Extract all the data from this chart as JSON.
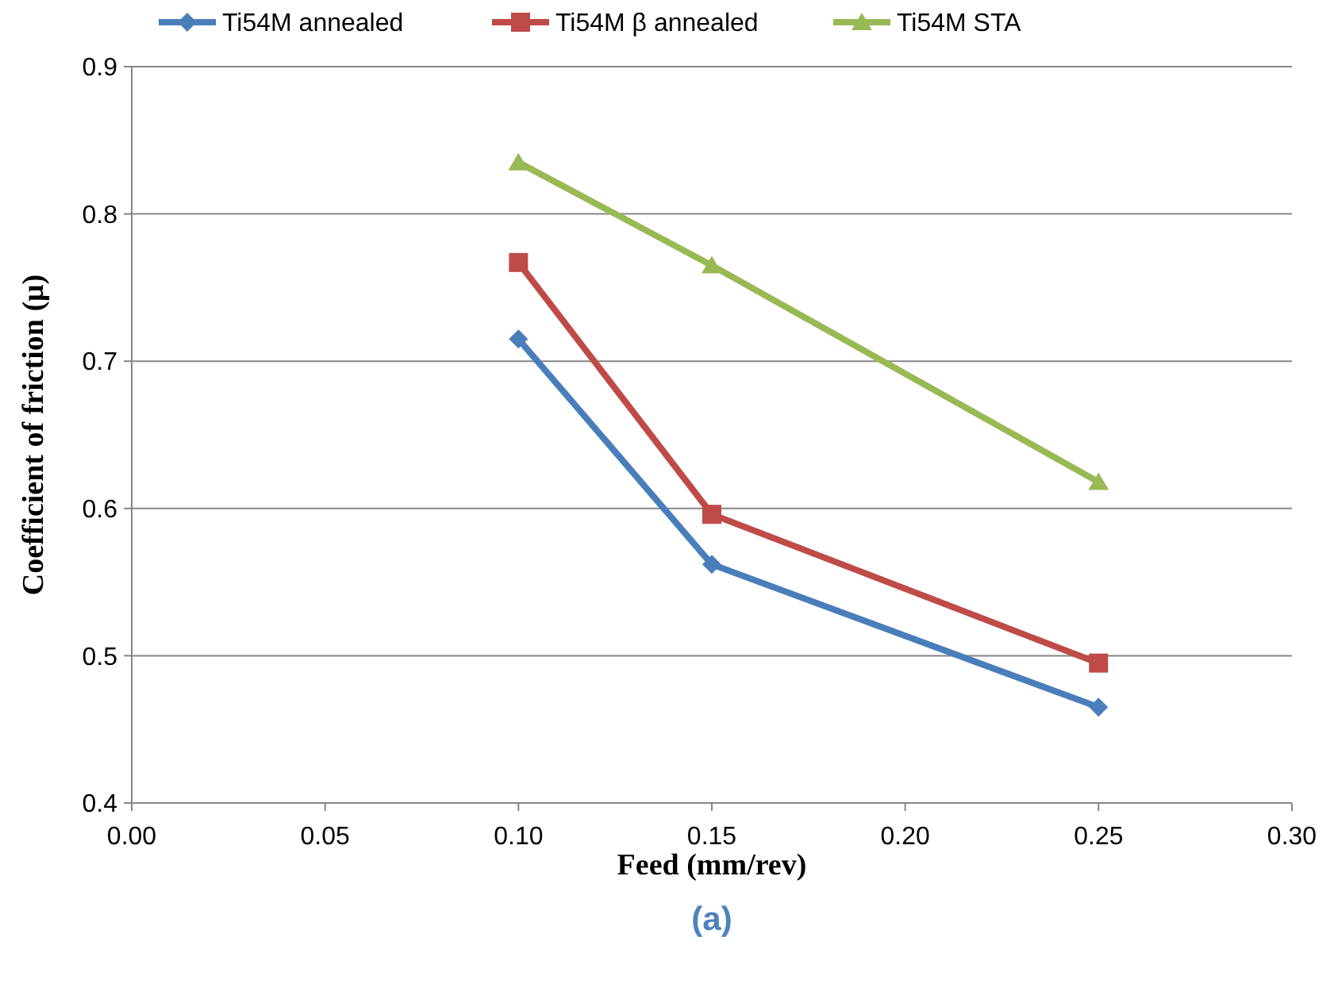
{
  "chart_data": {
    "type": "line",
    "xlabel": "Feed (mm/rev)",
    "ylabel": "Coefficient of friction (μ)",
    "x": [
      0.1,
      0.15,
      0.25
    ],
    "series": [
      {
        "name": "Ti54M annealed",
        "color": "#4a7ebb",
        "marker": "diamond",
        "values": [
          0.715,
          0.562,
          0.465
        ]
      },
      {
        "name": "Ti54M β annealed",
        "color": "#be4b48",
        "marker": "square",
        "values": [
          0.767,
          0.596,
          0.495
        ]
      },
      {
        "name": "Ti54M STA",
        "color": "#98b954",
        "marker": "triangle",
        "values": [
          0.835,
          0.765,
          0.618
        ]
      }
    ],
    "xlim": [
      0,
      0.3
    ],
    "xticks": [
      {
        "value": 0,
        "label": "0.00"
      },
      {
        "value": 0.05,
        "label": "0.05"
      },
      {
        "value": 0.1,
        "label": "0.10"
      },
      {
        "value": 0.15,
        "label": "0.15"
      },
      {
        "value": 0.2,
        "label": "0.20"
      },
      {
        "value": 0.25,
        "label": "0.25"
      },
      {
        "value": 0.3,
        "label": "0.30"
      }
    ],
    "ylim": [
      0.4,
      0.9
    ],
    "yticks": [
      0.4,
      0.5,
      0.6,
      0.7,
      0.8,
      0.9
    ],
    "grid": "y",
    "legend": "top",
    "line_style": "solid",
    "annotations": [
      "(a)"
    ]
  }
}
